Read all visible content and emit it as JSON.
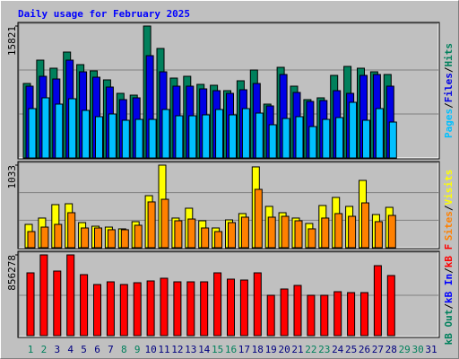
{
  "chart_data": {
    "type": "bar",
    "title": "Daily usage for February 2025",
    "title_color": "#0000ff",
    "categories": [
      "1",
      "2",
      "3",
      "4",
      "5",
      "6",
      "7",
      "8",
      "9",
      "10",
      "11",
      "12",
      "13",
      "14",
      "15",
      "16",
      "17",
      "18",
      "19",
      "20",
      "21",
      "22",
      "23",
      "24",
      "25",
      "26",
      "27",
      "28",
      "29",
      "30",
      "31"
    ],
    "category_colors": [
      "#00805c",
      "#00805c",
      "#000080",
      "#000080",
      "#000080",
      "#000080",
      "#000080",
      "#00805c",
      "#00805c",
      "#000080",
      "#000080",
      "#000080",
      "#000080",
      "#000080",
      "#00805c",
      "#00805c",
      "#000080",
      "#000080",
      "#000080",
      "#000080",
      "#000080",
      "#00805c",
      "#00805c",
      "#000080",
      "#000080",
      "#000080",
      "#000080",
      "#000080",
      "#00805c",
      "#00805c",
      "#000080"
    ],
    "legend_separator": "/",
    "panels": [
      {
        "ylim": [
          0,
          15821
        ],
        "yticks": [
          15821
        ],
        "series": [
          {
            "name": "Hits",
            "color": "#00805c",
            "values": [
              8933,
              11731,
              10763,
              12700,
              11193,
              10440,
              9364,
              7749,
              7534,
              15821,
              13131,
              9579,
              9794,
              8825,
              8718,
              8072,
              9256,
              10547,
              6458,
              10870,
              8610,
              6996,
              7211,
              9902,
              10978,
              10763,
              10332,
              10009,
              null,
              null,
              null
            ]
          },
          {
            "name": "Files",
            "color": "#0000e6",
            "values": [
              8610,
              9794,
              9471,
              11731,
              10332,
              9686,
              8503,
              6996,
              7211,
              12269,
              10332,
              8610,
              8610,
              8287,
              8072,
              7749,
              8180,
              8933,
              6242,
              10009,
              7857,
              6780,
              6888,
              8072,
              7749,
              9902,
              10009,
              8610,
              null,
              null,
              null
            ]
          },
          {
            "name": "Pages",
            "color": "#00c0ff",
            "values": [
              5920,
              7211,
              6458,
              7103,
              5704,
              4951,
              5274,
              4520,
              4628,
              4628,
              5812,
              5058,
              5058,
              5166,
              5812,
              5166,
              5920,
              5381,
              3982,
              4736,
              4951,
              3767,
              4628,
              4843,
              6673,
              4520,
              5920,
              4305,
              null,
              null,
              null
            ]
          }
        ]
      },
      {
        "ylim": [
          0,
          1033
        ],
        "yticks": [
          1033
        ],
        "series": [
          {
            "name": "Visits",
            "color": "#ffff00",
            "values": [
              292,
              371,
              539,
              550,
              314,
              269,
              258,
              236,
              326,
              651,
              1033,
              371,
              494,
              337,
              247,
              348,
              427,
              1011,
              517,
              438,
              371,
              303,
              528,
              629,
              517,
              842,
              415,
              505,
              null,
              null,
              null
            ]
          },
          {
            "name": "Sites",
            "color": "#ff8000",
            "values": [
              202,
              258,
              292,
              438,
              247,
              247,
              225,
              225,
              281,
              573,
              606,
              337,
              359,
              247,
              202,
              314,
              382,
              730,
              382,
              393,
              337,
              236,
              371,
              427,
              393,
              561,
              326,
              404,
              null,
              null,
              null
            ]
          }
        ]
      },
      {
        "ylim": [
          0,
          856278
        ],
        "yticks": [
          856278
        ],
        "series": [
          {
            "name": "kB F",
            "color": "#ff0000",
            "values": [
              665994,
              856278,
              685022,
              856278,
              646966,
              542309,
              570852,
              542309,
              561338,
              580366,
              608909,
              570852,
              570852,
              570852,
              665994,
              599395,
              589880,
              665994,
              428139,
              494738,
              532795,
              428139,
              428139,
              466196,
              456681,
              456681,
              742108,
              637474,
              null,
              null,
              null
            ]
          },
          {
            "name": "kB In",
            "color": "#0000ff",
            "values": [
              null,
              null,
              null,
              null,
              null,
              null,
              null,
              null,
              null,
              null,
              null,
              null,
              null,
              null,
              null,
              null,
              null,
              null,
              null,
              null,
              null,
              null,
              null,
              null,
              null,
              null,
              null,
              null,
              null,
              null,
              null
            ]
          },
          {
            "name": "kB Out",
            "color": "#00805c",
            "values": [
              null,
              null,
              null,
              null,
              null,
              null,
              null,
              null,
              null,
              null,
              null,
              null,
              null,
              null,
              null,
              null,
              null,
              null,
              null,
              null,
              null,
              null,
              null,
              null,
              null,
              null,
              null,
              null,
              null,
              null,
              null
            ]
          }
        ]
      }
    ]
  }
}
